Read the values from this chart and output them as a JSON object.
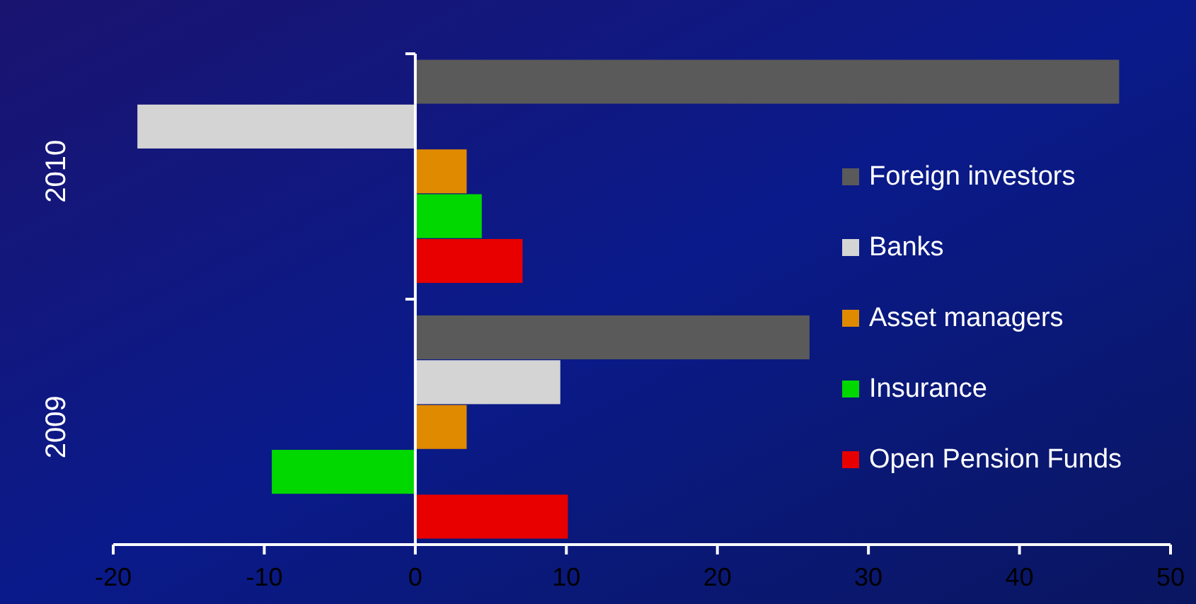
{
  "chart_data": {
    "type": "bar",
    "orientation": "horizontal",
    "categories": [
      "2010",
      "2009"
    ],
    "series": [
      {
        "name": "Foreign investors",
        "color": "#5a5a5a",
        "values": [
          46.6,
          26.1
        ]
      },
      {
        "name": "Banks",
        "color": "#d4d4d4",
        "values": [
          -18.4,
          9.6
        ]
      },
      {
        "name": "Asset managers",
        "color": "#e08a00",
        "values": [
          3.4,
          3.4
        ]
      },
      {
        "name": "Insurance",
        "color": "#00d800",
        "values": [
          4.4,
          -9.5
        ]
      },
      {
        "name": "Open Pension Funds",
        "color": "#e80000",
        "values": [
          7.1,
          10.1
        ]
      }
    ],
    "xlim": [
      -20,
      50
    ],
    "xticks": [
      -20,
      -10,
      0,
      10,
      20,
      30,
      40,
      50
    ],
    "legend": "right"
  }
}
